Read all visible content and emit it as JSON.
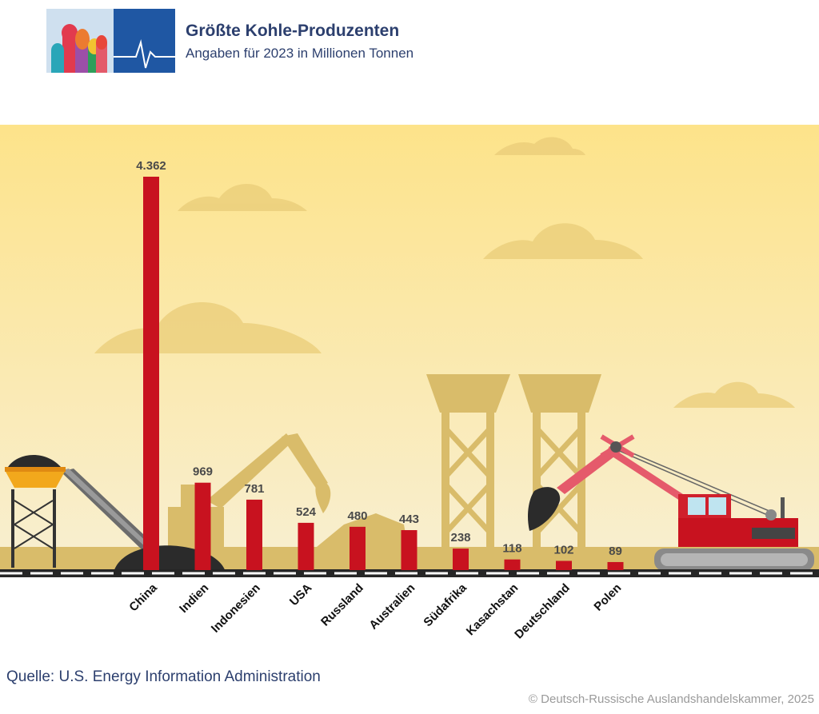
{
  "header": {
    "title": "Größte Kohle-Produzenten",
    "subtitle": "Angaben für 2023 in Millionen Tonnen"
  },
  "footer": {
    "source": "Quelle: U.S. Energy Information Administration",
    "copyright": "© Deutsch-Russische Auslandshandelskammer, 2025"
  },
  "colors": {
    "bar": "#c8121f",
    "sky_top": "#fde38a",
    "sky_bottom": "#f7ecc8",
    "silhouette": "#d9bc6a",
    "title_text": "#2c3f6e"
  },
  "chart_data": {
    "type": "bar",
    "title": "Größte Kohle-Produzenten",
    "subtitle": "Angaben für 2023 in Millionen Tonnen",
    "xlabel": "",
    "ylabel": "",
    "categories": [
      "China",
      "Indien",
      "Indonesien",
      "USA",
      "Russland",
      "Australien",
      "Südafrika",
      "Kasachstan",
      "Deutschland",
      "Polen"
    ],
    "values": [
      4362,
      969,
      781,
      524,
      480,
      443,
      238,
      118,
      102,
      89
    ],
    "value_labels": [
      "4.362",
      "969",
      "781",
      "524",
      "480",
      "443",
      "238",
      "118",
      "102",
      "89"
    ],
    "ylim": [
      0,
      4362
    ],
    "grid": false,
    "legend": "none"
  }
}
